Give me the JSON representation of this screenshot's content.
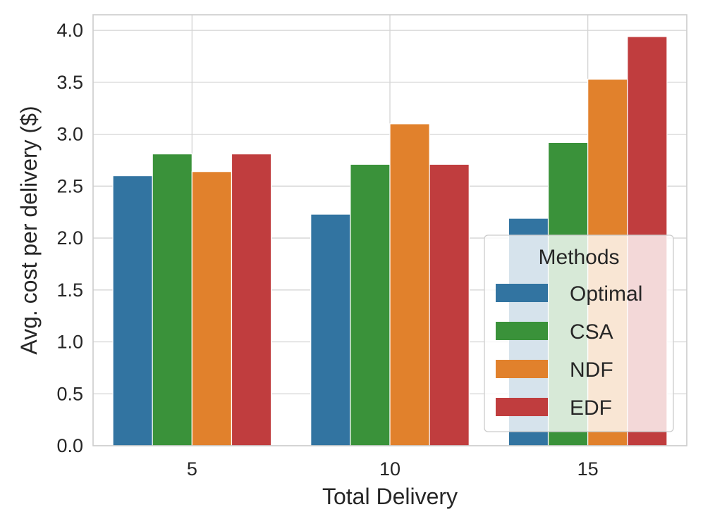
{
  "chart_data": {
    "type": "bar",
    "title": "",
    "xlabel": "Total Delivery",
    "ylabel": "Avg. cost per delivery ($)",
    "categories": [
      "5",
      "10",
      "15"
    ],
    "ylim": [
      0,
      4.15
    ],
    "yticks": [
      "0.0",
      "0.5",
      "1.0",
      "1.5",
      "2.0",
      "2.5",
      "3.0",
      "3.5",
      "4.0"
    ],
    "grid": true,
    "legend": {
      "title": "Methods",
      "position": "lower-right"
    },
    "series": [
      {
        "name": "Optimal",
        "color": "#3274a1",
        "values": [
          2.6,
          2.23,
          2.19
        ]
      },
      {
        "name": "CSA",
        "color": "#3a923a",
        "values": [
          2.81,
          2.71,
          2.92
        ]
      },
      {
        "name": "NDF",
        "color": "#e1812c",
        "values": [
          2.64,
          3.1,
          3.53
        ]
      },
      {
        "name": "EDF",
        "color": "#c03d3e",
        "values": [
          2.81,
          2.71,
          3.94
        ]
      }
    ]
  }
}
